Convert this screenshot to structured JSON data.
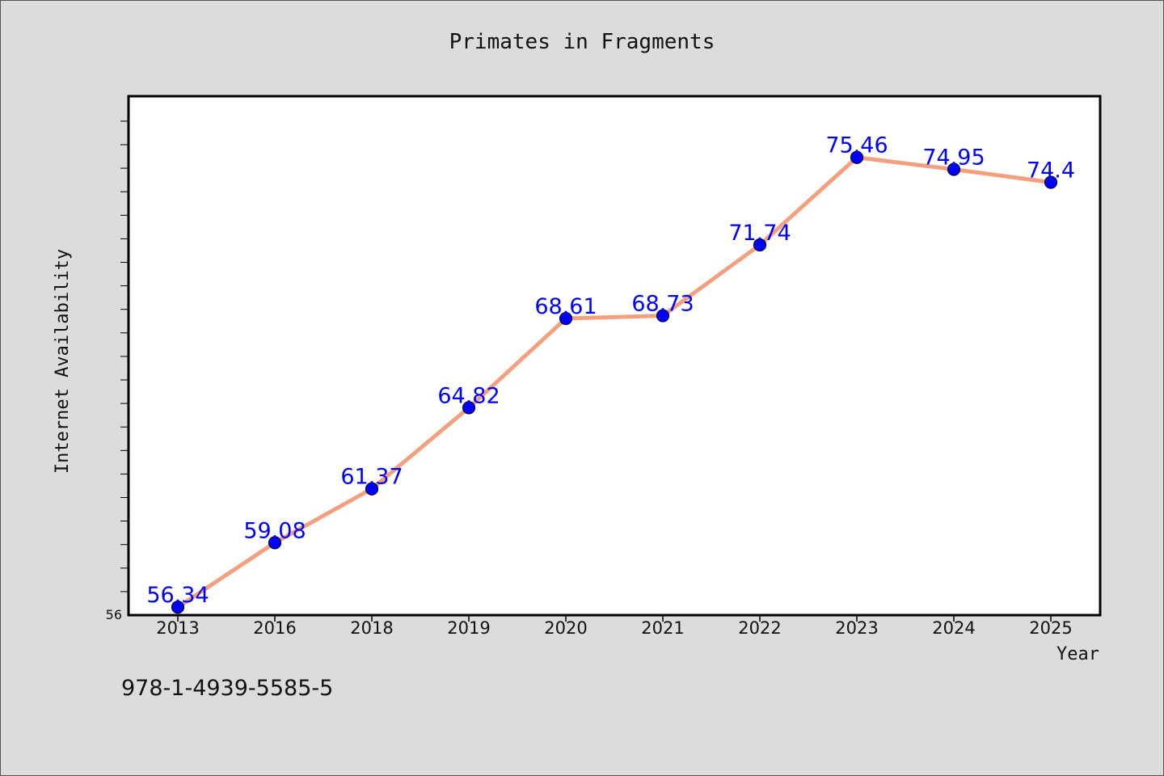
{
  "chart_data": {
    "type": "line",
    "title": "Primates in Fragments",
    "xlabel": "Year",
    "ylabel": "Internet Availability",
    "categories": [
      "2013",
      "2016",
      "2018",
      "2019",
      "2020",
      "2021",
      "2022",
      "2023",
      "2024",
      "2025"
    ],
    "series": [
      {
        "values": [
          56.34,
          59.08,
          61.37,
          64.82,
          68.61,
          68.73,
          71.74,
          75.46,
          74.95,
          74.4
        ],
        "data_labels": [
          "56.34",
          "59.08",
          "61.37",
          "64.82",
          "68.61",
          "68.73",
          "71.74",
          "75.46",
          "74.95",
          "74.4"
        ],
        "line_color": "#f4a07f",
        "marker_color": "#0000ff"
      }
    ],
    "ylim": [
      56,
      78
    ],
    "y_tick_labels": [
      "56"
    ],
    "y_minor_tick_step": 1,
    "grid": false,
    "legend": "none"
  },
  "footer": {
    "isbn": "978-1-4939-5585-5"
  }
}
